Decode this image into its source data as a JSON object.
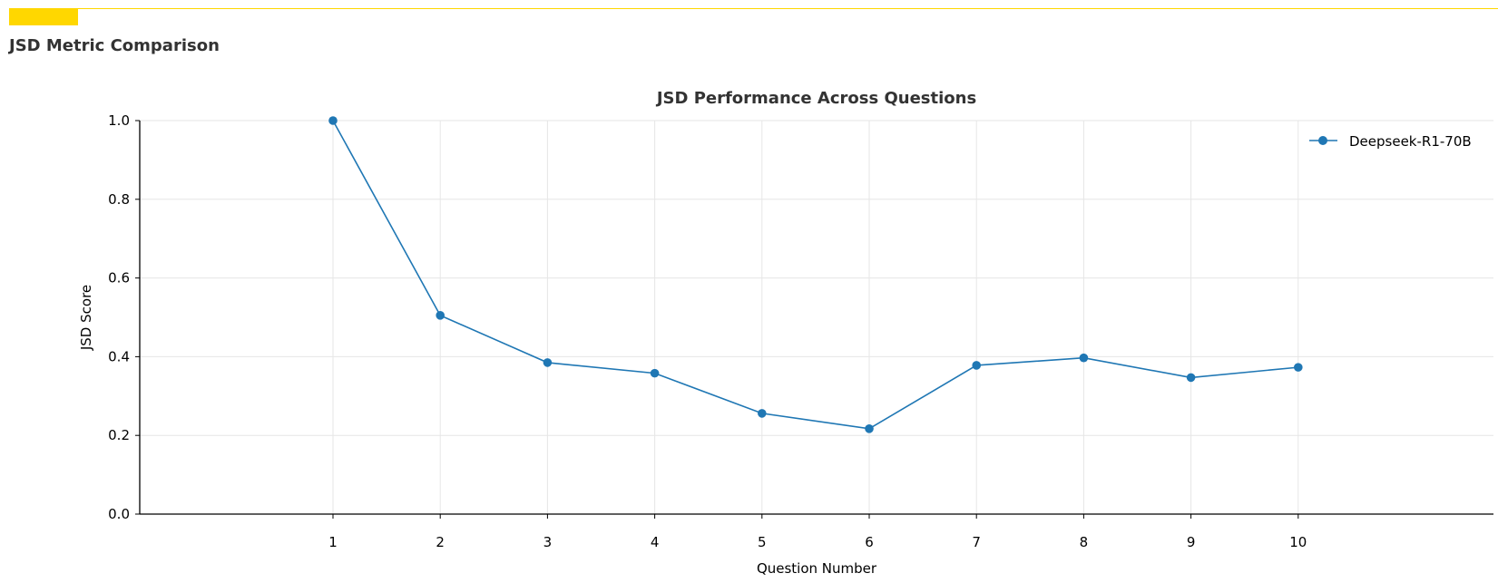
{
  "header": {
    "section_title": "JSD Metric Comparison",
    "accent_color": "#FFD700"
  },
  "chart_data": {
    "type": "line",
    "title": "JSD Performance Across Questions",
    "xlabel": "Question Number",
    "ylabel": "JSD Score",
    "x": [
      1,
      2,
      3,
      4,
      5,
      6,
      7,
      8,
      9,
      10
    ],
    "x_tick_labels": [
      "1",
      "2",
      "3",
      "4",
      "5",
      "6",
      "7",
      "8",
      "9",
      "10"
    ],
    "ylim": [
      0.0,
      1.0
    ],
    "y_ticks": [
      0.0,
      0.2,
      0.4,
      0.6,
      0.8,
      1.0
    ],
    "y_tick_labels": [
      "0.0",
      "0.2",
      "0.4",
      "0.6",
      "0.8",
      "1.0"
    ],
    "grid": true,
    "legend_position": "top-right",
    "series": [
      {
        "name": "Deepseek-R1-70B",
        "color": "#1f77b4",
        "marker": "circle",
        "values": [
          1.0,
          0.505,
          0.385,
          0.358,
          0.256,
          0.217,
          0.378,
          0.397,
          0.347,
          0.373
        ]
      }
    ]
  }
}
